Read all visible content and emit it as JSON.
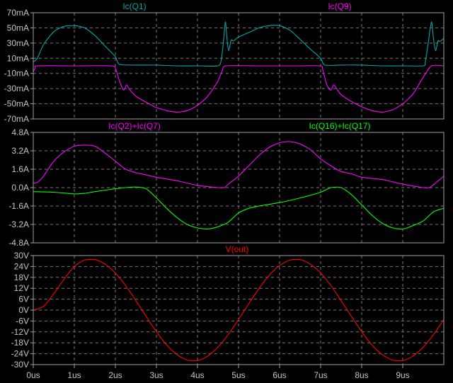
{
  "chart_data": [
    {
      "type": "line",
      "xlim": [
        0,
        10
      ],
      "ylim": [
        -70,
        70
      ],
      "yticks": [
        70,
        50,
        30,
        10,
        -10,
        -30,
        -50,
        -70
      ],
      "ytick_labels": [
        "70mA",
        "50mA",
        "30mA",
        "10mA",
        "-10mA",
        "-30mA",
        "-50mA",
        "-70mA"
      ],
      "grid": true,
      "series": [
        {
          "name": "Ic(Q1)",
          "color": "#00a8a8",
          "label_pos": "top-left",
          "points": [
            [
              0,
              5
            ],
            [
              0.1,
              10
            ],
            [
              0.25,
              28
            ],
            [
              0.5,
              45
            ],
            [
              0.75,
              52
            ],
            [
              1.0,
              53
            ],
            [
              1.25,
              50
            ],
            [
              1.5,
              40
            ],
            [
              1.75,
              26
            ],
            [
              2.0,
              12
            ],
            [
              2.1,
              2
            ],
            [
              2.5,
              1
            ],
            [
              3.0,
              1
            ],
            [
              3.5,
              0
            ],
            [
              4.0,
              0
            ],
            [
              4.5,
              0
            ],
            [
              4.58,
              8
            ],
            [
              4.63,
              30
            ],
            [
              4.68,
              58
            ],
            [
              4.72,
              35
            ],
            [
              4.76,
              20
            ],
            [
              4.82,
              34
            ],
            [
              4.88,
              33
            ],
            [
              5.0,
              38
            ],
            [
              5.25,
              44
            ],
            [
              5.5,
              50
            ],
            [
              5.75,
              53
            ],
            [
              6.0,
              53
            ],
            [
              6.25,
              47
            ],
            [
              6.5,
              35
            ],
            [
              6.75,
              22
            ],
            [
              7.0,
              10
            ],
            [
              7.1,
              1
            ],
            [
              7.5,
              1
            ],
            [
              8.0,
              1
            ],
            [
              8.5,
              0
            ],
            [
              9.0,
              0
            ],
            [
              9.5,
              0
            ],
            [
              9.55,
              5
            ],
            [
              9.62,
              30
            ],
            [
              9.7,
              58
            ],
            [
              9.75,
              35
            ],
            [
              9.8,
              20
            ],
            [
              9.86,
              33
            ],
            [
              9.9,
              32
            ],
            [
              10.0,
              36
            ]
          ]
        },
        {
          "name": "Ic(Q9)",
          "color": "#ff00ff",
          "label_pos": "top-right",
          "points": [
            [
              0,
              -8
            ],
            [
              0.05,
              -3
            ],
            [
              0.1,
              0
            ],
            [
              1.0,
              0
            ],
            [
              1.9,
              0
            ],
            [
              2.0,
              -3
            ],
            [
              2.1,
              -20
            ],
            [
              2.2,
              -32
            ],
            [
              2.27,
              -25
            ],
            [
              2.33,
              -30
            ],
            [
              2.5,
              -40
            ],
            [
              2.75,
              -48
            ],
            [
              3.0,
              -55
            ],
            [
              3.25,
              -59
            ],
            [
              3.5,
              -61
            ],
            [
              3.75,
              -59
            ],
            [
              4.0,
              -52
            ],
            [
              4.25,
              -40
            ],
            [
              4.5,
              -20
            ],
            [
              4.6,
              -7
            ],
            [
              4.7,
              0
            ],
            [
              5.5,
              0
            ],
            [
              6.5,
              0
            ],
            [
              7.0,
              0
            ],
            [
              7.05,
              -5
            ],
            [
              7.15,
              -25
            ],
            [
              7.25,
              -32
            ],
            [
              7.32,
              -25
            ],
            [
              7.4,
              -31
            ],
            [
              7.5,
              -38
            ],
            [
              7.75,
              -47
            ],
            [
              8.0,
              -54
            ],
            [
              8.25,
              -59
            ],
            [
              8.5,
              -61
            ],
            [
              8.75,
              -58
            ],
            [
              9.0,
              -50
            ],
            [
              9.25,
              -37
            ],
            [
              9.5,
              -15
            ],
            [
              9.7,
              0
            ],
            [
              10.0,
              0
            ]
          ]
        }
      ]
    },
    {
      "type": "line",
      "xlim": [
        0,
        10
      ],
      "ylim": [
        -4.8,
        4.8
      ],
      "yticks": [
        4.8,
        3.2,
        1.6,
        0,
        -1.6,
        -3.2,
        -4.8
      ],
      "ytick_labels": [
        "4.8A",
        "3.2A",
        "1.6A",
        "0.0A",
        "-1.6A",
        "-3.2A",
        "-4.8A"
      ],
      "grid": true,
      "series": [
        {
          "name": "Ic(Q2)+Ic(Q7)",
          "color": "#ff00ff",
          "label_pos": "top-left",
          "points": [
            [
              0,
              0.4
            ],
            [
              0.1,
              0.45
            ],
            [
              0.25,
              1.0
            ],
            [
              0.5,
              2.3
            ],
            [
              0.75,
              3.1
            ],
            [
              1.0,
              3.6
            ],
            [
              1.25,
              3.7
            ],
            [
              1.5,
              3.6
            ],
            [
              1.75,
              3.0
            ],
            [
              2.0,
              2.3
            ],
            [
              2.25,
              1.6
            ],
            [
              2.5,
              1.3
            ],
            [
              2.75,
              1.1
            ],
            [
              3.0,
              0.9
            ],
            [
              3.5,
              0.6
            ],
            [
              4.0,
              0.2
            ],
            [
              4.5,
              0.0
            ],
            [
              4.65,
              0.0
            ],
            [
              4.75,
              0.3
            ],
            [
              5.0,
              1.0
            ],
            [
              5.25,
              1.9
            ],
            [
              5.5,
              2.8
            ],
            [
              5.75,
              3.5
            ],
            [
              6.0,
              3.9
            ],
            [
              6.25,
              4.0
            ],
            [
              6.5,
              3.8
            ],
            [
              6.75,
              3.3
            ],
            [
              7.0,
              2.5
            ],
            [
              7.25,
              1.9
            ],
            [
              7.5,
              1.4
            ],
            [
              7.75,
              1.2
            ],
            [
              8.0,
              0.9
            ],
            [
              8.5,
              0.7
            ],
            [
              9.0,
              0.3
            ],
            [
              9.5,
              0.0
            ],
            [
              9.65,
              0.0
            ],
            [
              9.8,
              0.4
            ],
            [
              10.0,
              1.0
            ]
          ]
        },
        {
          "name": "Ic(Q16)+Ic(Q17)",
          "color": "#00ff00",
          "label_pos": "top-right",
          "points": [
            [
              0,
              -0.35
            ],
            [
              0.5,
              -0.4
            ],
            [
              1.0,
              -0.55
            ],
            [
              1.25,
              -0.5
            ],
            [
              1.5,
              -0.35
            ],
            [
              2.0,
              -0.1
            ],
            [
              2.25,
              0.0
            ],
            [
              2.5,
              0.05
            ],
            [
              2.75,
              -0.1
            ],
            [
              3.0,
              -0.9
            ],
            [
              3.25,
              -1.8
            ],
            [
              3.5,
              -2.6
            ],
            [
              3.75,
              -3.2
            ],
            [
              4.0,
              -3.5
            ],
            [
              4.25,
              -3.6
            ],
            [
              4.5,
              -3.4
            ],
            [
              4.75,
              -3.0
            ],
            [
              5.0,
              -2.2
            ],
            [
              5.25,
              -1.8
            ],
            [
              5.5,
              -1.6
            ],
            [
              6.0,
              -1.3
            ],
            [
              6.5,
              -0.9
            ],
            [
              7.0,
              -0.4
            ],
            [
              7.25,
              0.0
            ],
            [
              7.5,
              0.0
            ],
            [
              7.75,
              -0.6
            ],
            [
              8.0,
              -1.5
            ],
            [
              8.25,
              -2.4
            ],
            [
              8.5,
              -3.1
            ],
            [
              8.75,
              -3.5
            ],
            [
              9.0,
              -3.6
            ],
            [
              9.25,
              -3.3
            ],
            [
              9.5,
              -2.9
            ],
            [
              9.75,
              -2.1
            ],
            [
              10.0,
              -1.8
            ]
          ]
        }
      ]
    },
    {
      "type": "line",
      "xlim": [
        0,
        10
      ],
      "ylim": [
        -30,
        30
      ],
      "yticks": [
        30,
        24,
        18,
        12,
        6,
        0,
        -6,
        -12,
        -18,
        -24,
        -30
      ],
      "ytick_labels": [
        "30V",
        "24V",
        "18V",
        "12V",
        "6V",
        "0V",
        "-6V",
        "-12V",
        "-18V",
        "-24V",
        "-30V"
      ],
      "grid": true,
      "xticks": [
        0,
        1,
        2,
        3,
        4,
        5,
        6,
        7,
        8,
        9
      ],
      "xtick_labels": [
        "0us",
        "1us",
        "2us",
        "3us",
        "4us",
        "5us",
        "6us",
        "7us",
        "8us",
        "9us"
      ],
      "series": [
        {
          "name": "V(out)",
          "color": "#ff0000",
          "label_pos": "top-center",
          "points": [
            [
              0,
              0
            ],
            [
              0.25,
              2
            ],
            [
              0.5,
              9
            ],
            [
              0.75,
              17
            ],
            [
              1.0,
              24
            ],
            [
              1.25,
              27.5
            ],
            [
              1.5,
              27.8
            ],
            [
              1.75,
              25.3
            ],
            [
              2.0,
              20.4
            ],
            [
              2.25,
              13.5
            ],
            [
              2.5,
              5.2
            ],
            [
              2.75,
              -3.5
            ],
            [
              3.0,
              -11.9
            ],
            [
              3.25,
              -19.2
            ],
            [
              3.5,
              -24.5
            ],
            [
              3.75,
              -27.5
            ],
            [
              4.0,
              -27.8
            ],
            [
              4.25,
              -25.3
            ],
            [
              4.5,
              -20.4
            ],
            [
              4.75,
              -13.5
            ],
            [
              5.0,
              -5.2
            ],
            [
              5.25,
              3.5
            ],
            [
              5.5,
              11.9
            ],
            [
              5.75,
              19.2
            ],
            [
              6.0,
              24.5
            ],
            [
              6.25,
              27.5
            ],
            [
              6.5,
              27.8
            ],
            [
              6.75,
              25.3
            ],
            [
              7.0,
              20.4
            ],
            [
              7.25,
              13.5
            ],
            [
              7.5,
              5.2
            ],
            [
              7.75,
              -3.5
            ],
            [
              8.0,
              -11.9
            ],
            [
              8.25,
              -19.2
            ],
            [
              8.5,
              -24.5
            ],
            [
              8.75,
              -27.5
            ],
            [
              9.0,
              -27.8
            ],
            [
              9.25,
              -25.3
            ],
            [
              9.5,
              -20.4
            ],
            [
              9.75,
              -13.5
            ],
            [
              10.0,
              -5.2
            ]
          ]
        }
      ]
    }
  ],
  "colors": {
    "background": "#000000",
    "frame": "#a0a0a0",
    "grid": "#7a7a7a",
    "tick_text": "#c4c4c4"
  }
}
